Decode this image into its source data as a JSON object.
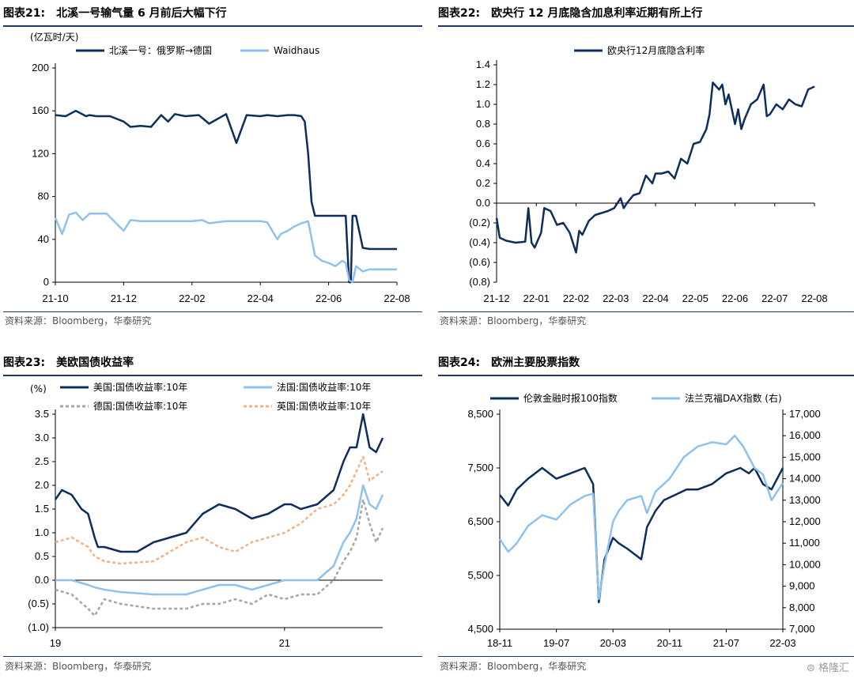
{
  "panels": [
    {
      "id": "p21",
      "title_num": "图表21:",
      "title_text": "北溪一号输气量 6 月前后大幅下行",
      "source": "资料来源：Bloomberg，华泰研究"
    },
    {
      "id": "p22",
      "title_num": "图表22:",
      "title_text": "欧央行 12 月底隐含加息利率近期有所上行",
      "source": "资料来源：Bloomberg，华泰研究"
    },
    {
      "id": "p23",
      "title_num": "图表23:",
      "title_text": "美欧国债收益率",
      "source": "资料来源：Bloomberg，华泰研究"
    },
    {
      "id": "p24",
      "title_num": "图表24:",
      "title_text": "欧洲主要股票指数",
      "source": "资料来源：Bloomberg，华泰研究"
    }
  ],
  "watermark": "格隆汇",
  "chart_data": [
    {
      "type": "line",
      "unit_label": "(亿瓦时/天)",
      "x_ticks": [
        "21-10",
        "21-12",
        "22-02",
        "22-04",
        "22-06",
        "22-08"
      ],
      "ylim": [
        0,
        200
      ],
      "y_ticks": [
        "0",
        "40",
        "80",
        "120",
        "160",
        "200"
      ],
      "grid": false,
      "legend": "top",
      "series": [
        {
          "name": "北溪一号：俄罗斯→德国",
          "color": "#0d2d5c",
          "x": [
            0,
            0.03,
            0.06,
            0.09,
            0.1,
            0.12,
            0.16,
            0.2,
            0.22,
            0.25,
            0.28,
            0.31,
            0.33,
            0.35,
            0.38,
            0.42,
            0.45,
            0.5,
            0.53,
            0.56,
            0.6,
            0.62,
            0.65,
            0.68,
            0.7,
            0.72,
            0.73,
            0.74,
            0.75,
            0.76,
            0.77,
            0.78,
            0.8,
            0.82,
            0.84,
            0.85,
            0.86,
            0.865,
            0.87,
            0.88,
            0.9,
            0.92,
            0.95,
            1
          ],
          "values": [
            156,
            155,
            160,
            155,
            156,
            155,
            155,
            150,
            145,
            146,
            145,
            156,
            150,
            157,
            155,
            156,
            148,
            157,
            130,
            156,
            155,
            156,
            155,
            156,
            156,
            155,
            150,
            120,
            75,
            62,
            62,
            62,
            62,
            62,
            62,
            62,
            0,
            0,
            62,
            62,
            32,
            31,
            31,
            31
          ]
        },
        {
          "name": "Waidhaus",
          "color": "#8ec2ee",
          "x": [
            0,
            0.02,
            0.04,
            0.06,
            0.08,
            0.1,
            0.15,
            0.2,
            0.22,
            0.25,
            0.3,
            0.35,
            0.4,
            0.43,
            0.45,
            0.5,
            0.55,
            0.6,
            0.62,
            0.65,
            0.66,
            0.68,
            0.7,
            0.72,
            0.74,
            0.76,
            0.78,
            0.8,
            0.82,
            0.84,
            0.85,
            0.86,
            0.87,
            0.88,
            0.9,
            0.92,
            0.95,
            1
          ],
          "values": [
            60,
            45,
            63,
            65,
            58,
            64,
            64,
            48,
            58,
            57,
            57,
            57,
            57,
            58,
            55,
            57,
            57,
            57,
            56,
            40,
            45,
            48,
            52,
            55,
            57,
            25,
            20,
            18,
            15,
            20,
            18,
            2,
            0,
            15,
            10,
            12,
            12,
            12
          ]
        }
      ]
    },
    {
      "type": "line",
      "x_ticks": [
        "21-12",
        "22-01",
        "22-02",
        "22-03",
        "22-04",
        "22-05",
        "22-06",
        "22-07",
        "22-08"
      ],
      "ylim": [
        -0.8,
        1.4
      ],
      "y_ticks": [
        "(0.8)",
        "(0.6)",
        "(0.4)",
        "(0.2)",
        "0.0",
        "0.2",
        "0.4",
        "0.6",
        "0.8",
        "1.0",
        "1.2",
        "1.4"
      ],
      "grid": false,
      "legend": "top",
      "series": [
        {
          "name": "欧央行12月底隐含利率",
          "color": "#0d2d5c",
          "x": [
            0,
            0.01,
            0.03,
            0.06,
            0.09,
            0.1,
            0.11,
            0.12,
            0.14,
            0.15,
            0.17,
            0.19,
            0.21,
            0.23,
            0.25,
            0.26,
            0.27,
            0.29,
            0.31,
            0.33,
            0.35,
            0.37,
            0.39,
            0.4,
            0.41,
            0.43,
            0.45,
            0.47,
            0.49,
            0.5,
            0.52,
            0.54,
            0.56,
            0.58,
            0.6,
            0.62,
            0.64,
            0.66,
            0.67,
            0.68,
            0.7,
            0.71,
            0.72,
            0.73,
            0.75,
            0.76,
            0.77,
            0.78,
            0.8,
            0.82,
            0.84,
            0.85,
            0.86,
            0.88,
            0.9,
            0.92,
            0.94,
            0.96,
            0.98,
            1
          ],
          "values": [
            -0.15,
            -0.35,
            -0.38,
            -0.4,
            -0.39,
            -0.05,
            -0.4,
            -0.45,
            -0.3,
            -0.05,
            -0.08,
            -0.22,
            -0.2,
            -0.3,
            -0.5,
            -0.28,
            -0.32,
            -0.18,
            -0.12,
            -0.1,
            -0.08,
            -0.05,
            0.05,
            -0.05,
            0.0,
            0.08,
            0.1,
            0.28,
            0.2,
            0.3,
            0.3,
            0.32,
            0.25,
            0.45,
            0.4,
            0.6,
            0.62,
            0.75,
            0.9,
            1.22,
            1.15,
            1.2,
            1.0,
            1.1,
            0.8,
            0.95,
            0.75,
            0.85,
            1.0,
            1.05,
            1.2,
            0.88,
            0.9,
            1.0,
            0.95,
            1.05,
            1.0,
            0.98,
            1.15,
            1.18
          ]
        }
      ]
    },
    {
      "type": "line",
      "unit_label": "(%)",
      "x_ticks": [
        "19",
        "21"
      ],
      "ylim": [
        -1.0,
        3.5
      ],
      "y_ticks": [
        "(1.0)",
        "(0.5)",
        "0.0",
        "0.5",
        "1.0",
        "1.5",
        "2.0",
        "2.5",
        "3.0",
        "3.5"
      ],
      "grid": false,
      "legend": "top",
      "series": [
        {
          "name": "美国:国债收益率:10年",
          "color": "#0d2d5c",
          "x": [
            0,
            0.02,
            0.05,
            0.08,
            0.1,
            0.12,
            0.13,
            0.15,
            0.2,
            0.25,
            0.3,
            0.35,
            0.4,
            0.45,
            0.5,
            0.55,
            0.6,
            0.65,
            0.7,
            0.72,
            0.75,
            0.8,
            0.85,
            0.88,
            0.9,
            0.92,
            0.94,
            0.96,
            0.98,
            1
          ],
          "values": [
            1.7,
            1.9,
            1.8,
            1.5,
            1.4,
            0.9,
            0.7,
            0.7,
            0.6,
            0.6,
            0.8,
            0.9,
            1.0,
            1.4,
            1.6,
            1.5,
            1.3,
            1.4,
            1.6,
            1.6,
            1.5,
            1.6,
            1.9,
            2.5,
            2.8,
            2.8,
            3.5,
            2.8,
            2.7,
            3.0
          ]
        },
        {
          "name": "法国:国债收益率:10年",
          "color": "#8ec2ee",
          "x": [
            0,
            0.05,
            0.1,
            0.12,
            0.15,
            0.2,
            0.3,
            0.4,
            0.45,
            0.5,
            0.55,
            0.6,
            0.65,
            0.7,
            0.75,
            0.8,
            0.85,
            0.88,
            0.9,
            0.92,
            0.94,
            0.96,
            0.98,
            1
          ],
          "values": [
            0.0,
            0.0,
            -0.1,
            -0.15,
            -0.2,
            -0.25,
            -0.3,
            -0.3,
            -0.2,
            -0.1,
            -0.1,
            -0.2,
            -0.1,
            0.0,
            0.0,
            0.0,
            0.3,
            0.8,
            1.0,
            1.3,
            2.0,
            1.6,
            1.5,
            1.8
          ]
        },
        {
          "name": "德国:国债收益率:10年",
          "color": "#a6a6a6",
          "dash": "4,3",
          "x": [
            0,
            0.05,
            0.1,
            0.12,
            0.15,
            0.2,
            0.3,
            0.4,
            0.45,
            0.5,
            0.55,
            0.6,
            0.65,
            0.7,
            0.75,
            0.8,
            0.85,
            0.88,
            0.9,
            0.92,
            0.94,
            0.96,
            0.98,
            1
          ],
          "values": [
            -0.2,
            -0.3,
            -0.6,
            -0.75,
            -0.4,
            -0.5,
            -0.6,
            -0.6,
            -0.5,
            -0.5,
            -0.4,
            -0.5,
            -0.3,
            -0.4,
            -0.3,
            -0.3,
            0.0,
            0.4,
            0.6,
            0.9,
            1.7,
            1.2,
            0.8,
            1.1
          ]
        },
        {
          "name": "英国:国债收益率:10年",
          "color": "#f4b183",
          "dash": "4,3",
          "x": [
            0,
            0.05,
            0.1,
            0.12,
            0.15,
            0.2,
            0.3,
            0.4,
            0.45,
            0.5,
            0.55,
            0.6,
            0.65,
            0.7,
            0.75,
            0.8,
            0.85,
            0.88,
            0.9,
            0.92,
            0.94,
            0.96,
            0.98,
            1
          ],
          "values": [
            0.8,
            0.9,
            0.7,
            0.5,
            0.4,
            0.35,
            0.4,
            0.8,
            0.9,
            0.7,
            0.6,
            0.8,
            0.9,
            1.0,
            1.2,
            1.5,
            1.6,
            1.8,
            2.0,
            2.3,
            2.6,
            2.1,
            2.2,
            2.3
          ]
        }
      ]
    },
    {
      "type": "line",
      "x_ticks": [
        "18-11",
        "19-07",
        "20-03",
        "20-11",
        "21-07",
        "22-03"
      ],
      "ylim": [
        4500,
        8500
      ],
      "y_ticks": [
        "4,500",
        "5,500",
        "6,500",
        "7,500",
        "8,500"
      ],
      "y2lim": [
        7000,
        17000
      ],
      "y2_ticks": [
        "7,000",
        "8,000",
        "9,000",
        "10,000",
        "11,000",
        "12,000",
        "13,000",
        "14,000",
        "15,000",
        "16,000",
        "17,000"
      ],
      "grid": false,
      "legend": "top",
      "series": [
        {
          "name": "伦敦金融时报100指数",
          "color": "#0d2d5c",
          "axis": "left",
          "x": [
            0,
            0.03,
            0.06,
            0.1,
            0.15,
            0.2,
            0.25,
            0.3,
            0.33,
            0.35,
            0.37,
            0.4,
            0.42,
            0.45,
            0.5,
            0.52,
            0.55,
            0.58,
            0.62,
            0.66,
            0.7,
            0.75,
            0.8,
            0.85,
            0.88,
            0.9,
            0.93,
            0.96,
            1
          ],
          "values": [
            7000,
            6800,
            7100,
            7300,
            7500,
            7300,
            7400,
            7500,
            7200,
            5000,
            5800,
            6200,
            6100,
            6000,
            5800,
            6400,
            6700,
            6900,
            7000,
            7100,
            7100,
            7200,
            7400,
            7500,
            7400,
            7500,
            7200,
            7100,
            7500
          ]
        },
        {
          "name": "法兰克福DAX指数 (右)",
          "color": "#8ec2ee",
          "axis": "right",
          "x": [
            0,
            0.03,
            0.06,
            0.1,
            0.15,
            0.2,
            0.25,
            0.3,
            0.33,
            0.35,
            0.37,
            0.4,
            0.42,
            0.45,
            0.5,
            0.52,
            0.55,
            0.6,
            0.65,
            0.7,
            0.75,
            0.8,
            0.83,
            0.86,
            0.9,
            0.93,
            0.96,
            1
          ],
          "values": [
            11200,
            10600,
            11000,
            11800,
            12300,
            12100,
            12800,
            13200,
            13300,
            8400,
            10000,
            12000,
            12500,
            13000,
            13200,
            12400,
            13400,
            14000,
            15000,
            15500,
            15700,
            15600,
            16000,
            15500,
            14500,
            14200,
            13000,
            13800
          ]
        }
      ]
    }
  ]
}
